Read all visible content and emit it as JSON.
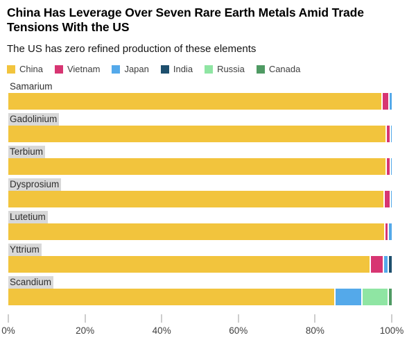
{
  "header": {
    "title": "China Has Leverage Over Seven Rare Earth Metals Amid Trade Tensions With the US",
    "subtitle": "The US has zero refined production of these elements"
  },
  "colors": {
    "china": "#F2C43D",
    "vietnam": "#D73572",
    "japan": "#54A9EA",
    "india": "#1E4F6D",
    "russia": "#8FE5A3",
    "canada": "#4F9A63",
    "label_highlight": "#D8D8D8"
  },
  "legend": [
    {
      "label": "China",
      "color": "#F2C43D"
    },
    {
      "label": "Vietnam",
      "color": "#D73572"
    },
    {
      "label": "Japan",
      "color": "#54A9EA"
    },
    {
      "label": "India",
      "color": "#1E4F6D"
    },
    {
      "label": "Russia",
      "color": "#8FE5A3"
    },
    {
      "label": "Canada",
      "color": "#4F9A63"
    }
  ],
  "chart_data": {
    "type": "bar",
    "orientation": "horizontal",
    "stacked": true,
    "unit": "percent",
    "title": "China Has Leverage Over Seven Rare Earth Metals Amid Trade Tensions With the US",
    "subtitle": "The US has zero refined production of these elements",
    "categories": [
      "Samarium",
      "Gadolinium",
      "Terbium",
      "Dysprosium",
      "Lutetium",
      "Yttrium",
      "Scandium"
    ],
    "label_highlight": [
      false,
      true,
      true,
      true,
      true,
      true,
      true
    ],
    "series": [
      {
        "name": "China",
        "color": "#F2C43D",
        "values": [
          97.2,
          98.3,
          98.3,
          97.8,
          98.0,
          94.2,
          85.0
        ]
      },
      {
        "name": "Vietnam",
        "color": "#D73572",
        "values": [
          1.9,
          1.2,
          1.2,
          1.6,
          0.9,
          3.5,
          0
        ]
      },
      {
        "name": "Japan",
        "color": "#54A9EA",
        "values": [
          0.9,
          0.5,
          0.5,
          0.6,
          1.1,
          1.3,
          7.0
        ]
      },
      {
        "name": "India",
        "color": "#1E4F6D",
        "values": [
          0,
          0,
          0,
          0,
          0,
          1.0,
          0
        ]
      },
      {
        "name": "Russia",
        "color": "#8FE5A3",
        "values": [
          0,
          0,
          0,
          0,
          0,
          0,
          7.0
        ]
      },
      {
        "name": "Canada",
        "color": "#4F9A63",
        "values": [
          0,
          0,
          0,
          0,
          0,
          0,
          1.0
        ]
      }
    ],
    "xlim": [
      0,
      100
    ],
    "x_ticks": [
      {
        "label": "0%",
        "value": 0
      },
      {
        "label": "20%",
        "value": 20
      },
      {
        "label": "40%",
        "value": 40
      },
      {
        "label": "60%",
        "value": 60
      },
      {
        "label": "80%",
        "value": 80
      },
      {
        "label": "100%",
        "value": 100
      }
    ],
    "legend_position": "top",
    "grid": false
  }
}
